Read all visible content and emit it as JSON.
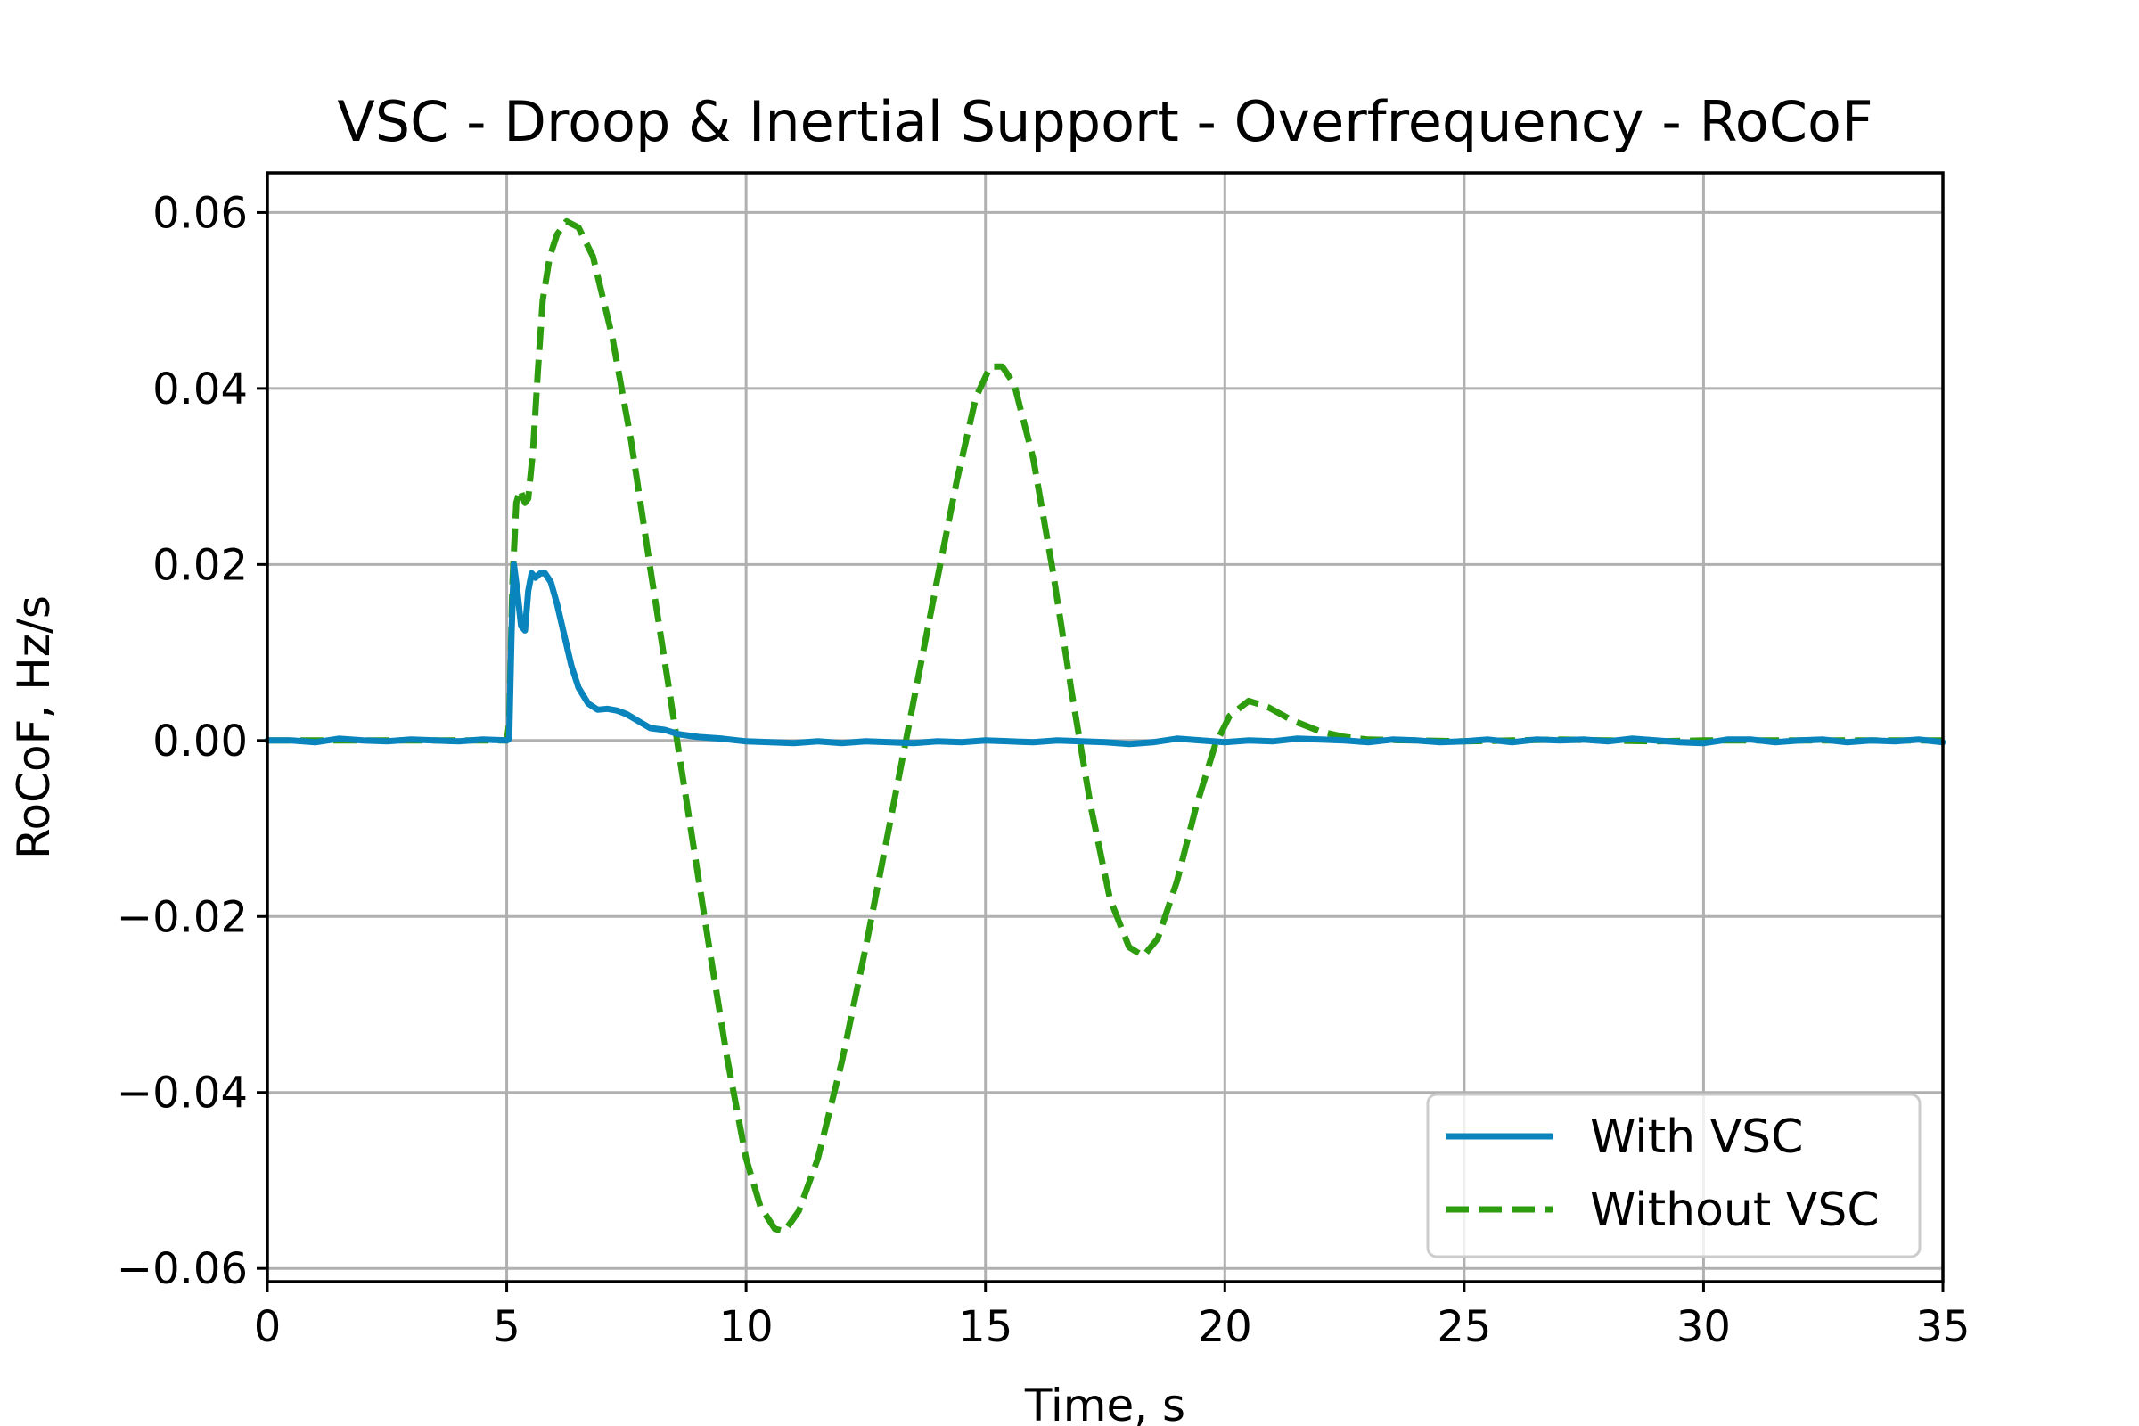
{
  "chart_data": {
    "type": "line",
    "title": "VSC - Droop & Inertial Support - Overfrequency - RoCoF",
    "xlabel": "Time, s",
    "ylabel": "RoCoF, Hz/s",
    "xlim": [
      0,
      35
    ],
    "ylim": [
      -0.0615,
      0.0645
    ],
    "x_ticks": [
      0,
      5,
      10,
      15,
      20,
      25,
      30,
      35
    ],
    "x_tick_labels": [
      "0",
      "5",
      "10",
      "15",
      "20",
      "25",
      "30",
      "35"
    ],
    "y_ticks": [
      0.06,
      0.04,
      0.02,
      0.0,
      -0.02,
      -0.04,
      -0.06
    ],
    "y_tick_labels": [
      "0.06",
      "0.04",
      "0.02",
      "0.00",
      "−0.02",
      "−0.04",
      "−0.06"
    ],
    "grid": true,
    "legend_position": "lower right",
    "series": [
      {
        "name": "With VSC",
        "color": "#0a84bc",
        "style": "solid",
        "points": [
          [
            0,
            0
          ],
          [
            0.5,
            0.0
          ],
          [
            1.0,
            -0.0002
          ],
          [
            1.5,
            0.0002
          ],
          [
            2.0,
            0
          ],
          [
            2.5,
            -0.0001
          ],
          [
            3.0,
            0.0001
          ],
          [
            3.5,
            0
          ],
          [
            4.0,
            -0.0001
          ],
          [
            4.5,
            0.0001
          ],
          [
            5.0,
            0
          ],
          [
            5.05,
            0.0002
          ],
          [
            5.1,
            0.012
          ],
          [
            5.15,
            0.02
          ],
          [
            5.22,
            0.017
          ],
          [
            5.3,
            0.013
          ],
          [
            5.38,
            0.0125
          ],
          [
            5.45,
            0.017
          ],
          [
            5.52,
            0.019
          ],
          [
            5.6,
            0.0185
          ],
          [
            5.7,
            0.019
          ],
          [
            5.8,
            0.019
          ],
          [
            5.92,
            0.018
          ],
          [
            6.05,
            0.0155
          ],
          [
            6.2,
            0.012
          ],
          [
            6.35,
            0.0085
          ],
          [
            6.5,
            0.006
          ],
          [
            6.7,
            0.0042
          ],
          [
            6.9,
            0.0035
          ],
          [
            7.1,
            0.0036
          ],
          [
            7.3,
            0.0034
          ],
          [
            7.5,
            0.003
          ],
          [
            7.75,
            0.0022
          ],
          [
            8.0,
            0.0014
          ],
          [
            8.3,
            0.0012
          ],
          [
            8.6,
            0.0007
          ],
          [
            9.0,
            0.0004
          ],
          [
            9.5,
            0.0002
          ],
          [
            10.0,
            -0.0001
          ],
          [
            10.5,
            -0.0002
          ],
          [
            11.0,
            -0.0003
          ],
          [
            11.5,
            -0.0001
          ],
          [
            12.0,
            -0.0003
          ],
          [
            12.5,
            -0.0001
          ],
          [
            13.0,
            -0.0002
          ],
          [
            13.5,
            -0.0003
          ],
          [
            14.0,
            -0.0001
          ],
          [
            14.5,
            -0.0002
          ],
          [
            15.0,
            0
          ],
          [
            15.5,
            -0.0001
          ],
          [
            16.0,
            -0.0002
          ],
          [
            16.5,
            0
          ],
          [
            17.0,
            -0.0001
          ],
          [
            17.5,
            -0.0002
          ],
          [
            18.0,
            -0.0004
          ],
          [
            18.5,
            -0.0002
          ],
          [
            19.0,
            0.0002
          ],
          [
            19.5,
            0
          ],
          [
            20.0,
            -0.0002
          ],
          [
            20.5,
            0
          ],
          [
            21.0,
            -0.0001
          ],
          [
            21.5,
            0.0002
          ],
          [
            22.0,
            0.0001
          ],
          [
            22.5,
            0
          ],
          [
            23.0,
            -0.0002
          ],
          [
            23.5,
            0.0001
          ],
          [
            24.0,
            0
          ],
          [
            24.5,
            -0.0002
          ],
          [
            25.0,
            -0.0001
          ],
          [
            25.5,
            0.0001
          ],
          [
            26.0,
            -0.0002
          ],
          [
            26.5,
            0.0001
          ],
          [
            27.0,
            0
          ],
          [
            27.5,
            0.0001
          ],
          [
            28.0,
            -0.0001
          ],
          [
            28.5,
            0.0002
          ],
          [
            29.0,
            0
          ],
          [
            29.5,
            -0.0002
          ],
          [
            30.0,
            -0.0003
          ],
          [
            30.5,
            0.0001
          ],
          [
            31.0,
            0.0001
          ],
          [
            31.5,
            -0.0002
          ],
          [
            32.0,
            0
          ],
          [
            32.5,
            0.0001
          ],
          [
            33.0,
            -0.0002
          ],
          [
            33.5,
            0
          ],
          [
            34.0,
            -0.0001
          ],
          [
            34.5,
            0.0001
          ],
          [
            35.0,
            -0.0002
          ]
        ]
      },
      {
        "name": "Without VSC",
        "color": "#2e9c0f",
        "style": "dashed",
        "points": [
          [
            0,
            0
          ],
          [
            1.0,
            0
          ],
          [
            2.0,
            0
          ],
          [
            3.0,
            0
          ],
          [
            4.0,
            0
          ],
          [
            5.0,
            0
          ],
          [
            5.05,
            0.002
          ],
          [
            5.12,
            0.018
          ],
          [
            5.2,
            0.027
          ],
          [
            5.28,
            0.0285
          ],
          [
            5.38,
            0.027
          ],
          [
            5.45,
            0.0275
          ],
          [
            5.55,
            0.033
          ],
          [
            5.65,
            0.042
          ],
          [
            5.75,
            0.05
          ],
          [
            5.9,
            0.055
          ],
          [
            6.05,
            0.0575
          ],
          [
            6.25,
            0.059
          ],
          [
            6.5,
            0.0583
          ],
          [
            6.8,
            0.055
          ],
          [
            7.2,
            0.046
          ],
          [
            7.6,
            0.034
          ],
          [
            8.0,
            0.0195
          ],
          [
            8.4,
            0.0055
          ],
          [
            8.8,
            -0.0085
          ],
          [
            9.2,
            -0.0225
          ],
          [
            9.6,
            -0.036
          ],
          [
            10.0,
            -0.0475
          ],
          [
            10.3,
            -0.053
          ],
          [
            10.6,
            -0.0555
          ],
          [
            10.8,
            -0.0558
          ],
          [
            11.1,
            -0.0535
          ],
          [
            11.5,
            -0.0475
          ],
          [
            12.0,
            -0.0365
          ],
          [
            12.5,
            -0.0235
          ],
          [
            13.0,
            -0.0095
          ],
          [
            13.5,
            0.0045
          ],
          [
            14.0,
            0.0185
          ],
          [
            14.4,
            0.0295
          ],
          [
            14.8,
            0.039
          ],
          [
            15.1,
            0.0425
          ],
          [
            15.35,
            0.0425
          ],
          [
            15.6,
            0.0405
          ],
          [
            16.0,
            0.032
          ],
          [
            16.4,
            0.0195
          ],
          [
            16.8,
            0.0055
          ],
          [
            17.2,
            -0.0075
          ],
          [
            17.6,
            -0.018
          ],
          [
            18.0,
            -0.0235
          ],
          [
            18.3,
            -0.0245
          ],
          [
            18.6,
            -0.0225
          ],
          [
            19.0,
            -0.016
          ],
          [
            19.4,
            -0.0075
          ],
          [
            19.8,
            -0.0005
          ],
          [
            20.1,
            0.0028
          ],
          [
            20.5,
            0.0045
          ],
          [
            20.9,
            0.0038
          ],
          [
            21.4,
            0.0023
          ],
          [
            22.0,
            0.001
          ],
          [
            22.5,
            0.0004
          ],
          [
            23.0,
            0.0001
          ],
          [
            24.0,
            0
          ],
          [
            25.0,
            -0.0001
          ],
          [
            26.0,
            0
          ],
          [
            27.0,
            0.0001
          ],
          [
            28.0,
            0
          ],
          [
            29.0,
            -0.0001
          ],
          [
            30.0,
            0
          ],
          [
            31.0,
            0
          ],
          [
            32.0,
            0
          ],
          [
            33.0,
            0
          ],
          [
            34.0,
            0
          ],
          [
            35.0,
            0
          ]
        ]
      }
    ]
  }
}
